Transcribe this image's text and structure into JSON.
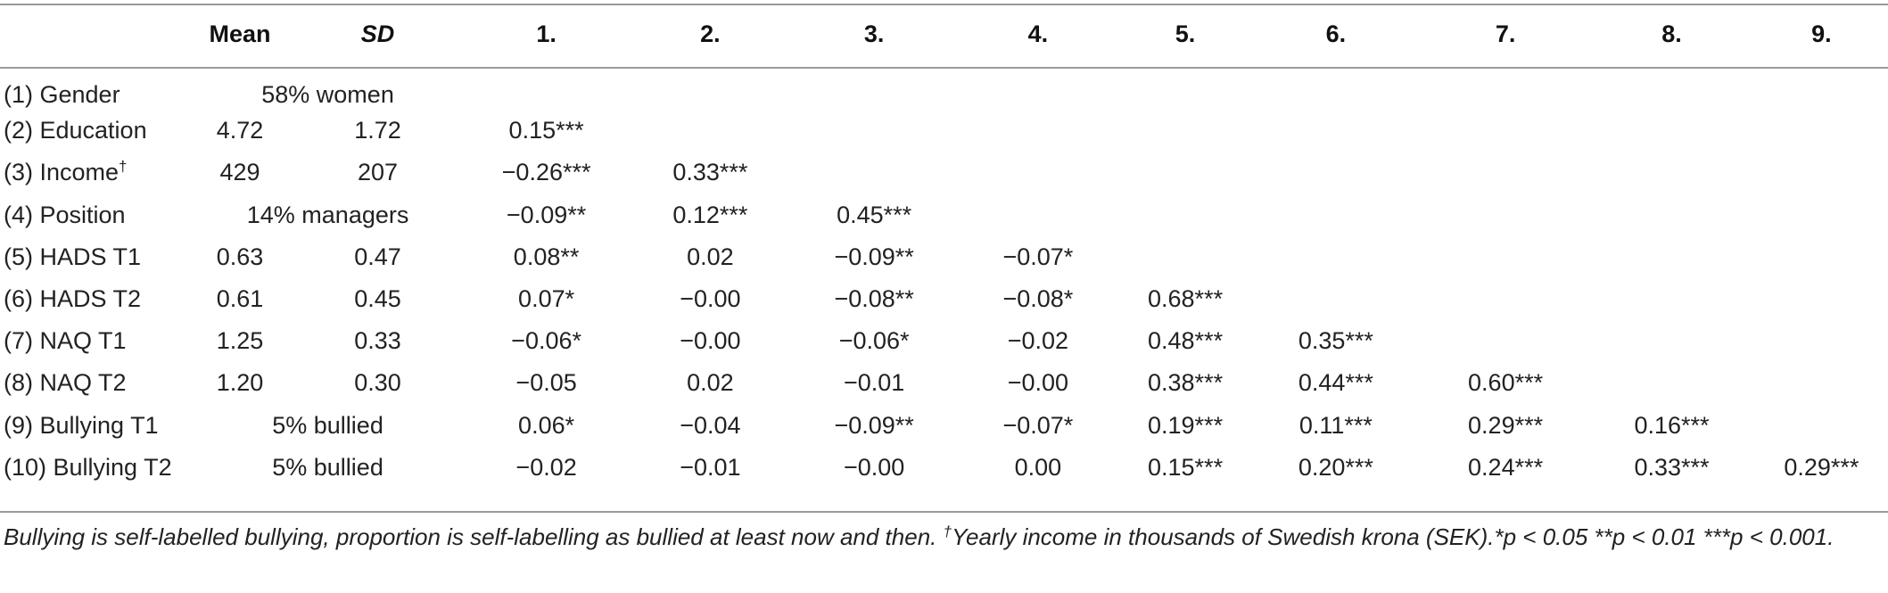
{
  "table": {
    "headers": [
      "",
      "Mean",
      "SD",
      "1.",
      "2.",
      "3.",
      "4.",
      "5.",
      "6.",
      "7.",
      "8.",
      "9."
    ],
    "rows": [
      {
        "label": "(1) Gender",
        "merged": "58% women",
        "cells": [
          "",
          "",
          "",
          "",
          "",
          "",
          "",
          "",
          ""
        ]
      },
      {
        "label": "(2) Education",
        "mean": "4.72",
        "sd": "1.72",
        "cells": [
          "0.15***",
          "",
          "",
          "",
          "",
          "",
          "",
          "",
          ""
        ]
      },
      {
        "label": "(3) Income",
        "label_sup": "†",
        "mean": "429",
        "sd": "207",
        "cells": [
          "−0.26***",
          "0.33***",
          "",
          "",
          "",
          "",
          "",
          "",
          ""
        ]
      },
      {
        "label": "(4) Position",
        "merged": "14% managers",
        "cells": [
          "−0.09**",
          "0.12***",
          "0.45***",
          "",
          "",
          "",
          "",
          "",
          ""
        ]
      },
      {
        "label": "(5) HADS T1",
        "mean": "0.63",
        "sd": "0.47",
        "cells": [
          "0.08**",
          "0.02",
          "−0.09**",
          "−0.07*",
          "",
          "",
          "",
          "",
          ""
        ]
      },
      {
        "label": "(6) HADS T2",
        "mean": "0.61",
        "sd": "0.45",
        "cells": [
          "0.07*",
          "−0.00",
          "−0.08**",
          "−0.08*",
          "0.68***",
          "",
          "",
          "",
          ""
        ]
      },
      {
        "label": "(7) NAQ T1",
        "mean": "1.25",
        "sd": "0.33",
        "cells": [
          "−0.06*",
          "−0.00",
          "−0.06*",
          "−0.02",
          "0.48***",
          "0.35***",
          "",
          "",
          ""
        ]
      },
      {
        "label": "(8) NAQ T2",
        "mean": "1.20",
        "sd": "0.30",
        "cells": [
          "−0.05",
          "0.02",
          "−0.01",
          "−0.00",
          "0.38***",
          "0.44***",
          "0.60***",
          "",
          ""
        ]
      },
      {
        "label": "(9) Bullying T1",
        "merged": "5% bullied",
        "cells": [
          "0.06*",
          "−0.04",
          "−0.09**",
          "−0.07*",
          "0.19***",
          "0.11***",
          "0.29***",
          "0.16***",
          ""
        ]
      },
      {
        "label": "(10) Bullying T2",
        "merged": "5% bullied",
        "cells": [
          "−0.02",
          "−0.01",
          "−0.00",
          "0.00",
          "0.15***",
          "0.20***",
          "0.24***",
          "0.33***",
          "0.29***"
        ]
      }
    ]
  },
  "note": {
    "text1": "Bullying is self-labelled bullying, proportion is self-labelling as bullied at least now and then. ",
    "sup": "†",
    "text2": "Yearly income in thousands of Swedish krona (SEK).*p < 0.05 **p < 0.01 ***p < 0.001."
  }
}
